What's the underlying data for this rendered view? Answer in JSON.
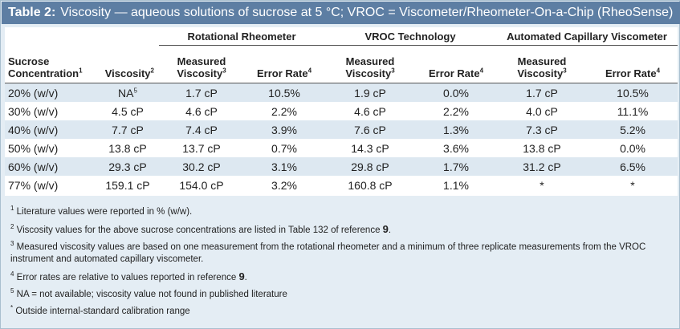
{
  "caption": {
    "number": "Table 2:",
    "text": "Viscosity — aqueous solutions of sucrose at 5 °C; VROC = Viscometer/Rheometer-On-a-Chip (RheoSense)"
  },
  "groups": {
    "rotational": "Rotational Rheometer",
    "vroc": "VROC Technology",
    "acv": "Automated Capillary Viscometer"
  },
  "headers": {
    "sucrose_line1": "Sucrose",
    "sucrose_line2": "Concentration",
    "sucrose_sup": "1",
    "viscosity": "Viscosity",
    "viscosity_sup": "2",
    "measured_line1": "Measured",
    "measured_line2": "Viscosity",
    "measured_sup": "3",
    "error": "Error Rate",
    "error_sup": "4"
  },
  "rows": [
    {
      "conc": "20% (w/v)",
      "visc": "NA",
      "visc_sup": "5",
      "rot_m": "1.7 cP",
      "rot_e": "10.5%",
      "vroc_m": "1.9 cP",
      "vroc_e": "0.0%",
      "acv_m": "1.7 cP",
      "acv_e": "10.5%"
    },
    {
      "conc": "30% (w/v)",
      "visc": "4.5 cP",
      "visc_sup": "",
      "rot_m": "4.6 cP",
      "rot_e": "2.2%",
      "vroc_m": "4.6 cP",
      "vroc_e": "2.2%",
      "acv_m": "4.0 cP",
      "acv_e": "11.1%"
    },
    {
      "conc": "40% (w/v)",
      "visc": "7.7 cP",
      "visc_sup": "",
      "rot_m": "7.4 cP",
      "rot_e": "3.9%",
      "vroc_m": "7.6 cP",
      "vroc_e": "1.3%",
      "acv_m": "7.3 cP",
      "acv_e": "5.2%"
    },
    {
      "conc": "50% (w/v)",
      "visc": "13.8 cP",
      "visc_sup": "",
      "rot_m": "13.7 cP",
      "rot_e": "0.7%",
      "vroc_m": "14.3 cP",
      "vroc_e": "3.6%",
      "acv_m": "13.8 cP",
      "acv_e": "0.0%"
    },
    {
      "conc": "60% (w/v)",
      "visc": "29.3 cP",
      "visc_sup": "",
      "rot_m": "30.2 cP",
      "rot_e": "3.1%",
      "vroc_m": "29.8 cP",
      "vroc_e": "1.7%",
      "acv_m": "31.2 cP",
      "acv_e": "6.5%"
    },
    {
      "conc": "77% (w/v)",
      "visc": "159.1 cP",
      "visc_sup": "",
      "rot_m": "154.0 cP",
      "rot_e": "3.2%",
      "vroc_m": "160.8 cP",
      "vroc_e": "1.1%",
      "acv_m": "*",
      "acv_e": "*"
    }
  ],
  "notes": [
    {
      "sup": "1",
      "text": "Literature values were reported in % (w/w).",
      "ref": "",
      "tail": ""
    },
    {
      "sup": "2",
      "text": "Viscosity values for the above sucrose concentrations are listed in Table 132 of reference ",
      "ref": "9",
      "tail": "."
    },
    {
      "sup": "3",
      "text": "Measured viscosity values are based on one measurement from the rotational rheometer and a minimum of three replicate measurements from the VROC instrument and automated capillary viscometer.",
      "ref": "",
      "tail": ""
    },
    {
      "sup": "4",
      "text": "Error rates are relative to values reported in reference ",
      "ref": "9",
      "tail": "."
    },
    {
      "sup": "5",
      "text": "NA = not available; viscosity value not found in published literature",
      "ref": "",
      "tail": ""
    },
    {
      "sup": "*",
      "text": "Outside internal-standard calibration range",
      "ref": "",
      "tail": ""
    }
  ]
}
